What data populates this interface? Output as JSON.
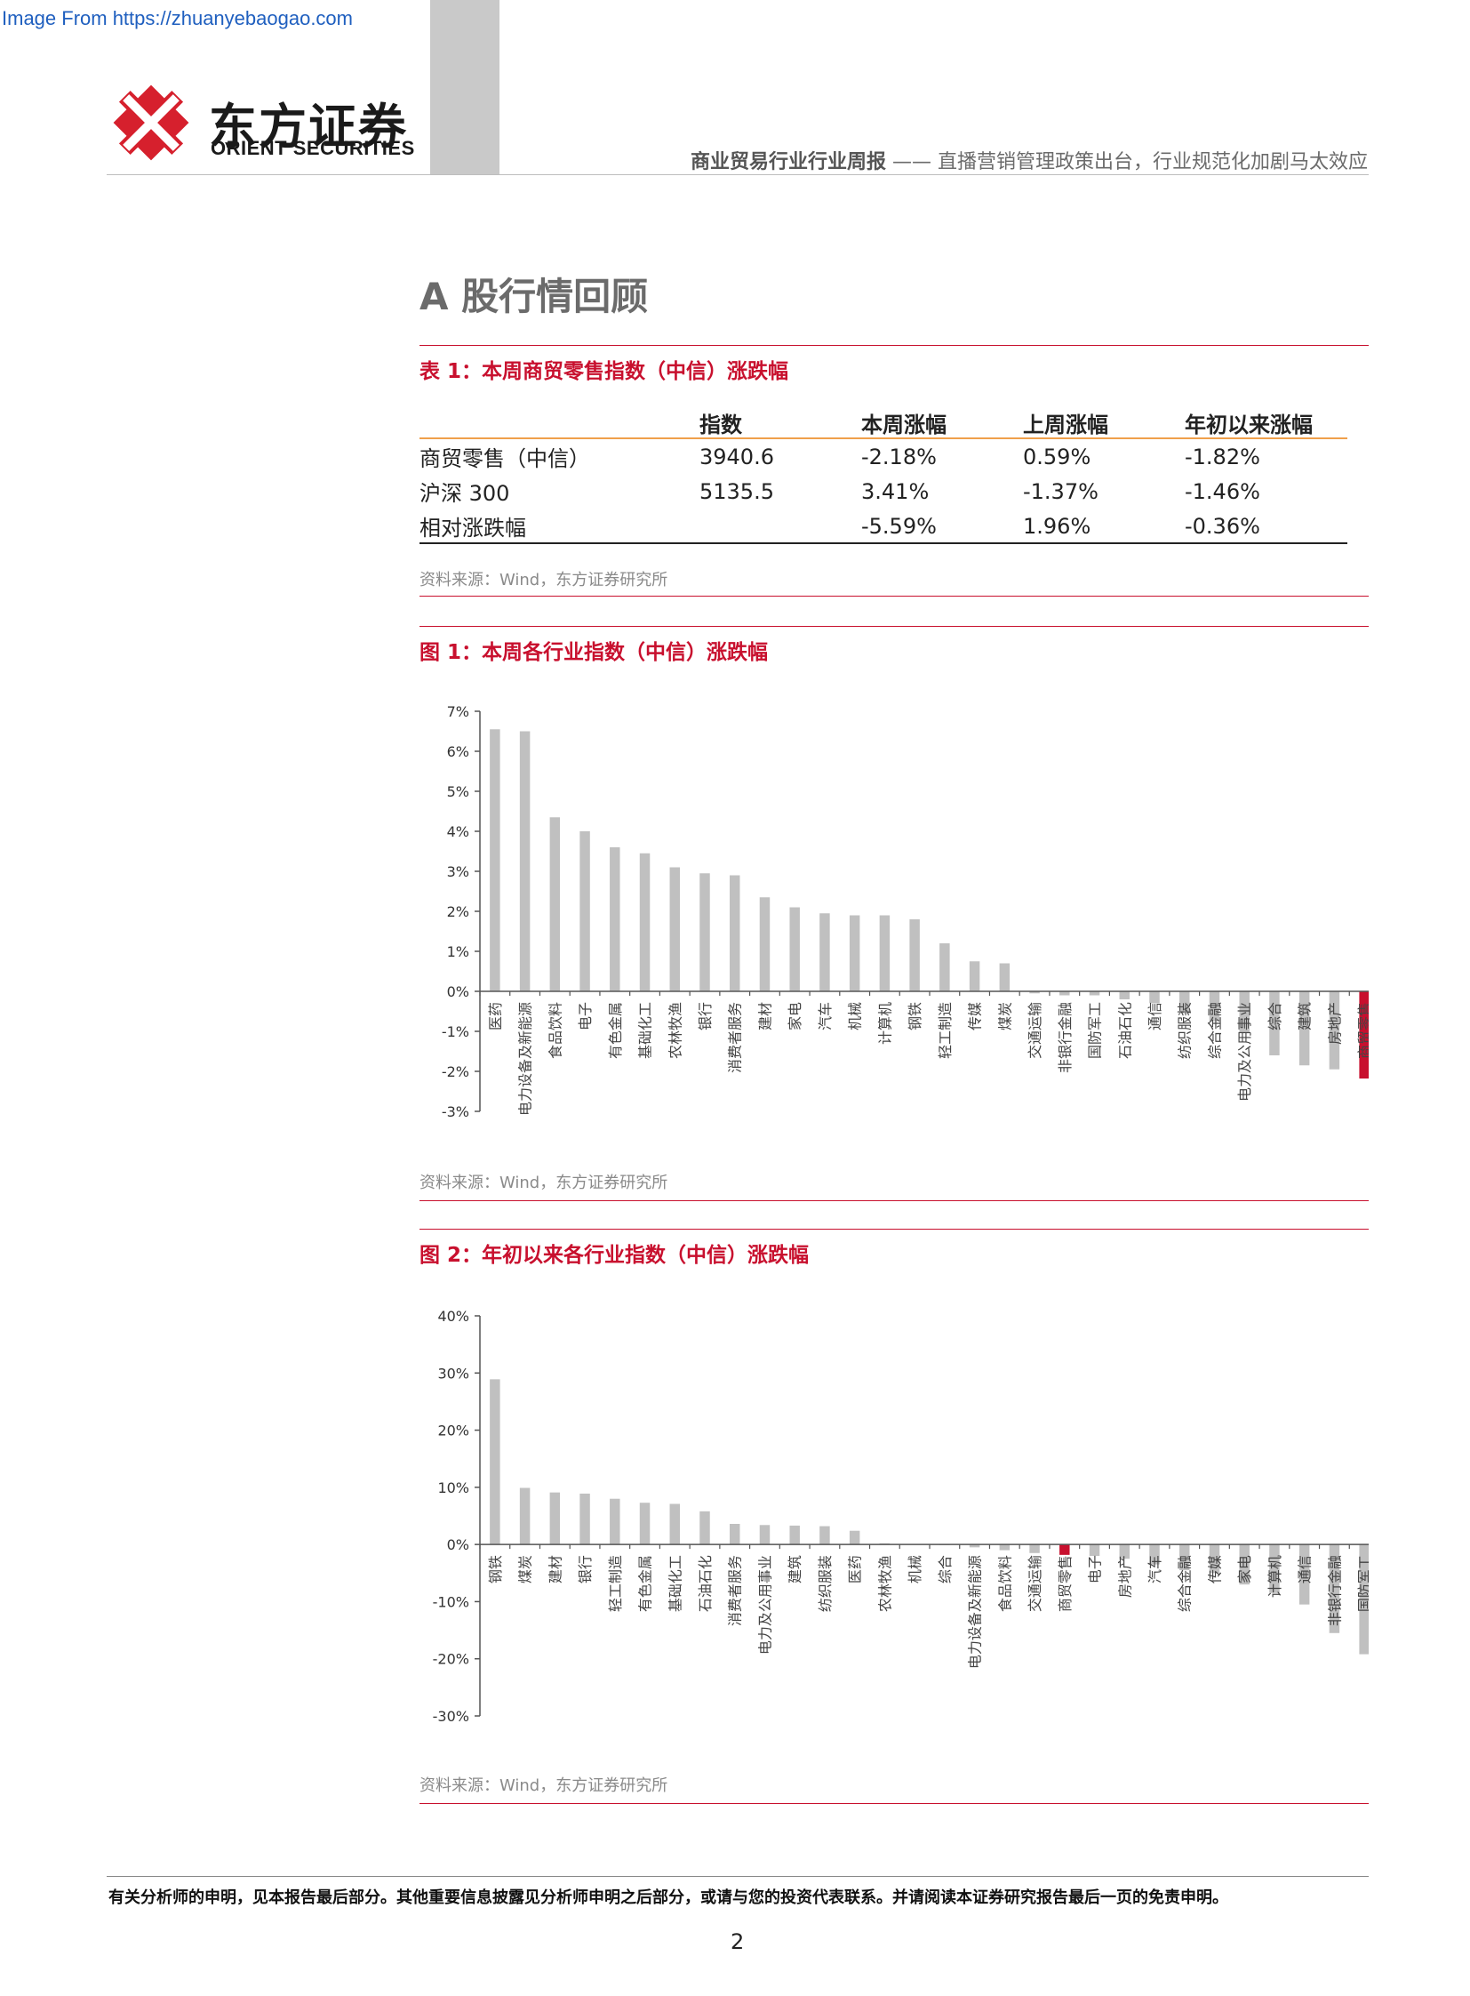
{
  "watermark": "Image From https://zhuanyebaogao.com",
  "logo": {
    "cn": "东方证券",
    "en": "ORIENT SECURITIES"
  },
  "header": {
    "title_bold": "商业贸易行业行业周报",
    "title_rest": " —— 直播营销管理政策出台，行业规范化加剧马太效应"
  },
  "section_title": "A 股行情回顾",
  "table1": {
    "caption": "表 1：本周商贸零售指数（中信）涨跌幅",
    "headers": [
      "",
      "指数",
      "本周涨幅",
      "上周涨幅",
      "年初以来涨幅"
    ],
    "rows": [
      [
        "商贸零售（中信）",
        "3940.6",
        "-2.18%",
        "0.59%",
        "-1.82%"
      ],
      [
        "沪深 300",
        "5135.5",
        "3.41%",
        "-1.37%",
        "-1.46%"
      ],
      [
        "相对涨跌幅",
        "",
        "-5.59%",
        "1.96%",
        "-0.36%"
      ]
    ],
    "source": "资料来源：Wind，东方证券研究所"
  },
  "figure1": {
    "caption": "图 1：本周各行业指数（中信）涨跌幅",
    "source": "资料来源：Wind，东方证券研究所"
  },
  "figure2": {
    "caption": "图 2：年初以来各行业指数（中信）涨跌幅",
    "source": "资料来源：Wind，东方证券研究所"
  },
  "chart_data": [
    {
      "type": "bar",
      "title": "",
      "ylim": [
        -3,
        7
      ],
      "ytick_step": 1,
      "ytick_suffix": "%",
      "bar_color": "#c0c0c0",
      "highlight_color": "#c8102e",
      "highlight_category": "商贸零售",
      "categories": [
        "医药",
        "电力设备及新能源",
        "食品饮料",
        "电子",
        "有色金属",
        "基础化工",
        "农林牧渔",
        "银行",
        "消费者服务",
        "建材",
        "家电",
        "汽车",
        "机械",
        "计算机",
        "钢铁",
        "轻工制造",
        "传媒",
        "煤炭",
        "交通运输",
        "非银行金融",
        "国防军工",
        "石油石化",
        "通信",
        "纺织服装",
        "综合金融",
        "电力及公用事业",
        "综合",
        "建筑",
        "房地产",
        "商贸零售"
      ],
      "values": [
        6.55,
        6.5,
        4.35,
        4.0,
        3.6,
        3.45,
        3.1,
        2.95,
        2.9,
        2.35,
        2.1,
        1.95,
        1.9,
        1.9,
        1.8,
        1.2,
        0.75,
        0.7,
        -0.05,
        -0.1,
        -0.1,
        -0.2,
        -0.3,
        -0.55,
        -0.75,
        -1.05,
        -1.6,
        -1.85,
        -1.95,
        -2.18
      ]
    },
    {
      "type": "bar",
      "title": "",
      "ylim": [
        -30,
        40
      ],
      "ytick_step": 10,
      "ytick_suffix": "%",
      "bar_color": "#c0c0c0",
      "highlight_color": "#c8102e",
      "highlight_category": "商贸零售",
      "categories": [
        "钢铁",
        "煤炭",
        "建材",
        "银行",
        "轻工制造",
        "有色金属",
        "基础化工",
        "石油石化",
        "消费者服务",
        "电力及公用事业",
        "建筑",
        "纺织服装",
        "医药",
        "农林牧渔",
        "机械",
        "综合",
        "电力设备及新能源",
        "食品饮料",
        "交通运输",
        "商贸零售",
        "电子",
        "房地产",
        "汽车",
        "综合金融",
        "传媒",
        "家电",
        "计算机",
        "通信",
        "非银行金融",
        "国防军工"
      ],
      "values": [
        28.9,
        9.9,
        9.1,
        8.9,
        8.0,
        7.3,
        7.1,
        5.8,
        3.6,
        3.4,
        3.3,
        3.2,
        2.4,
        0.2,
        0.1,
        -0.1,
        -0.5,
        -1.0,
        -1.5,
        -1.82,
        -2.0,
        -2.5,
        -3.5,
        -4.5,
        -5.0,
        -7.0,
        -8.5,
        -10.5,
        -15.5,
        -19.2
      ]
    }
  ],
  "footer": {
    "note": "有关分析师的申明，见本报告最后部分。其他重要信息披露见分析师申明之后部分，或请与您的投资代表联系。并请阅读本证券研究报告最后一页的免责申明。",
    "page_number": "2"
  }
}
